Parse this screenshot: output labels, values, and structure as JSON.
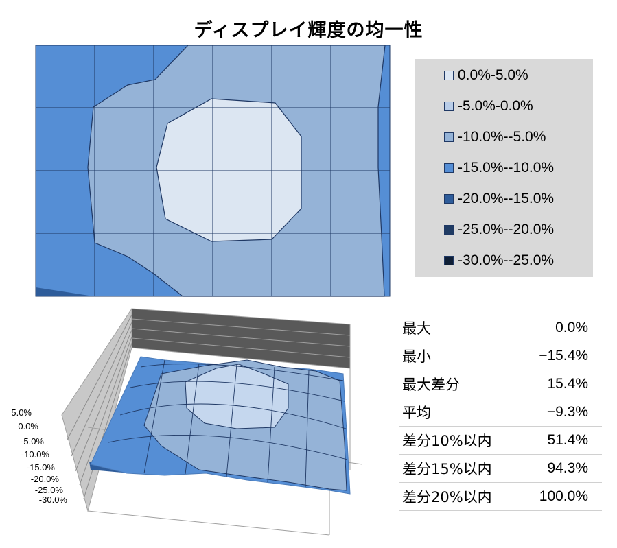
{
  "title": "ディスプレイ輝度の均一性",
  "chart_data": [
    {
      "type": "heatmap",
      "title": "ディスプレイ輝度の均一性",
      "legend": {
        "placement": "right",
        "entries": [
          {
            "label": "0.0%-5.0%",
            "color": "#dce6f2"
          },
          {
            "label": "-5.0%-0.0%",
            "color": "#b9cde8"
          },
          {
            "label": "-10.0%--5.0%",
            "color": "#95b3d7"
          },
          {
            "label": "-15.0%--10.0%",
            "color": "#558ed5"
          },
          {
            "label": "-20.0%--15.0%",
            "color": "#2e5c9a"
          },
          {
            "label": "-25.0%--20.0%",
            "color": "#1f3b63"
          },
          {
            "label": "-30.0%--25.0%",
            "color": "#0f1f36"
          }
        ]
      },
      "grid": true,
      "columns": 6,
      "rows": 4
    },
    {
      "type": "surface",
      "y_ticks": [
        "5.0%",
        "0.0%",
        "-5.0%",
        "-10.0%",
        "-15.0%",
        "-20.0%",
        "-25.0%",
        "-30.0%"
      ],
      "ylim": [
        -30,
        5
      ]
    }
  ],
  "stats": [
    {
      "label": "最大",
      "value": "0.0%"
    },
    {
      "label": "最小",
      "value": "−15.4%"
    },
    {
      "label": "最大差分",
      "value": "15.4%"
    },
    {
      "label": "平均",
      "value": "−9.3%"
    },
    {
      "label": "差分10%以内",
      "value": "51.4%"
    },
    {
      "label": "差分15%以内",
      "value": "94.3%"
    },
    {
      "label": "差分20%以内",
      "value": "100.0%"
    }
  ]
}
